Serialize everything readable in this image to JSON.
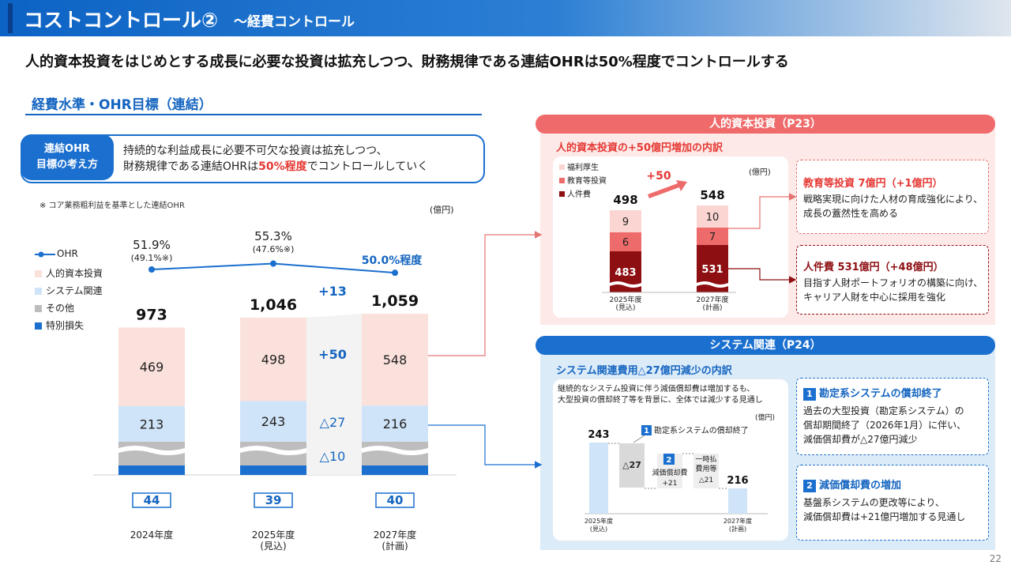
{
  "header": {
    "title": "コストコントロール②",
    "subtitle": "～経費コントロール"
  },
  "lead": "人的資本投資をはじめとする成長に必要な投資は拡充しつつ、財務規律である連結OHRは50%程度でコントロールする",
  "section_title": "経費水準・OHR目標（連結）",
  "concept": {
    "pill_line1": "連結OHR",
    "pill_line2": "目標の考え方",
    "line1": "持続的な利益成長に必要不可欠な投資は拡充しつつ、",
    "line2_pre": "財務規律である連結OHRは",
    "line2_red": "50%程度",
    "line2_post": "でコントロールしていく"
  },
  "note": "※ コア業務粗利益を基準とした連結OHR",
  "unit": "(億円)",
  "colors": {
    "human": "#fbe1db",
    "system": "#cfe4f8",
    "other": "#bdbdbd",
    "special": "#1a6fcf",
    "ohr": "#1a6fcf",
    "red": "#e53935",
    "dark_red": "#8e0f12"
  },
  "chart_data": [
    {
      "type": "bar",
      "title": "経費水準・OHR目標（連結）",
      "unit": "億円",
      "categories": [
        "2024年度",
        "2025年度\n(見込)",
        "2027年度\n(計画)"
      ],
      "series": [
        {
          "name": "特別損失",
          "values": [
            null,
            null,
            null
          ]
        },
        {
          "name": "その他",
          "values": [
            null,
            null,
            null
          ]
        },
        {
          "name": "システム関連",
          "values": [
            213,
            243,
            216
          ]
        },
        {
          "name": "人的資本投資",
          "values": [
            469,
            498,
            548
          ]
        }
      ],
      "boxed_values": [
        44,
        39,
        40
      ],
      "totals": [
        973,
        1046,
        1059
      ],
      "totals_text": [
        "973",
        "1,046",
        "1,059"
      ],
      "ohr_line": {
        "name": "OHR",
        "values": [
          51.9,
          55.3,
          50.0
        ],
        "labels": [
          "51.9%",
          "55.3%",
          "50.0%程度"
        ],
        "sub_labels": [
          "(49.1%※)",
          "(47.6%※)",
          ""
        ]
      },
      "legend": [
        "OHR",
        "人的資本投資",
        "システム関連",
        "その他",
        "特別損失"
      ],
      "bridge_labels": [
        "+13",
        "+50",
        "△27",
        "△10"
      ],
      "category_lines": [
        [
          "2024年度"
        ],
        [
          "2025年度",
          "(見込)"
        ],
        [
          "2027年度",
          "(計画)"
        ]
      ]
    },
    {
      "type": "bar",
      "title": "人的資本投資の+50億円増加の内訳",
      "unit": "億円",
      "categories": [
        "2025年度(見込)",
        "2027年度(計画)"
      ],
      "series": [
        {
          "name": "人件費",
          "values": [
            483,
            531
          ]
        },
        {
          "name": "教育等投資",
          "values": [
            6,
            7
          ]
        },
        {
          "name": "福利厚生",
          "values": [
            9,
            10
          ]
        }
      ],
      "totals": [
        498,
        548
      ],
      "delta_label": "+50",
      "category_lines": [
        [
          "2025年度",
          "(見込)"
        ],
        [
          "2027年度",
          "(計画)"
        ]
      ]
    },
    {
      "type": "bar",
      "title": "システム関連費用△27億円減少の内訳",
      "unit": "億円",
      "waterfall": [
        {
          "label": "2025年度(見込)",
          "value": 243,
          "kind": "total"
        },
        {
          "label": "△27",
          "value": -27,
          "kind": "delta",
          "note": "勘定系システムの償却終了"
        },
        {
          "label": "減価償却費 +21",
          "value": 21,
          "kind": "delta"
        },
        {
          "label": "一時払 費用等 △21",
          "value": -21,
          "kind": "delta"
        },
        {
          "label": "2027年度(計画)",
          "value": 216,
          "kind": "total"
        }
      ]
    }
  ],
  "human_panel": {
    "header": "人的資本投資（P23）",
    "subtitle": "人的資本投資の+50億円増加の内訳",
    "unit": "(億円)",
    "legend": [
      "福利厚生",
      "教育等投資",
      "人件費"
    ],
    "totals": [
      "498",
      "548"
    ],
    "delta": "+50",
    "seg_labels_2025": [
      "9",
      "6",
      "483"
    ],
    "seg_labels_2027": [
      "10",
      "7",
      "531"
    ],
    "card1_title": "教育等投資 7億円（+1億円）",
    "card1_body1": "戦略実現に向けた人材の育成強化により、",
    "card1_body2": "成長の蓋然性を高める",
    "card2_title": "人件費 531億円（+48億円）",
    "card2_body1": "目指す人財ポートフォリオの構築に向け、",
    "card2_body2": "キャリア人財を中心に採用を強化"
  },
  "system_panel": {
    "header": "システム関連（P24）",
    "subtitle": "システム関連費用△27億円減少の内訳",
    "desc1": "継続的なシステム投資に伴う減価償却費は増加するも、",
    "desc2": "大型投資の償却終了等を背景に、全体では減少する見通し",
    "unit": "(億円)",
    "start": "243",
    "end": "216",
    "step1": "△27",
    "step1_note": "勘定系システムの償却終了",
    "step2_line1": "減価償却費",
    "step2_line2": "+21",
    "step3_line1": "一時払",
    "step3_line2": "費用等",
    "step3_line3": "△21",
    "badge1": "1",
    "badge2": "2",
    "card1_title": "勘定系システムの償却終了",
    "card1_body1": "過去の大型投資（勘定系システム）の",
    "card1_body2": "償却期間終了（2026年1月）に伴い、",
    "card1_body3": "減価償却費が△27億円減少",
    "card2_title": "減価償却費の増加",
    "card2_body1": "基盤系システムの更改等により、",
    "card2_body2": "減価償却費は+21億円増加する見通し"
  },
  "page_number": "22"
}
